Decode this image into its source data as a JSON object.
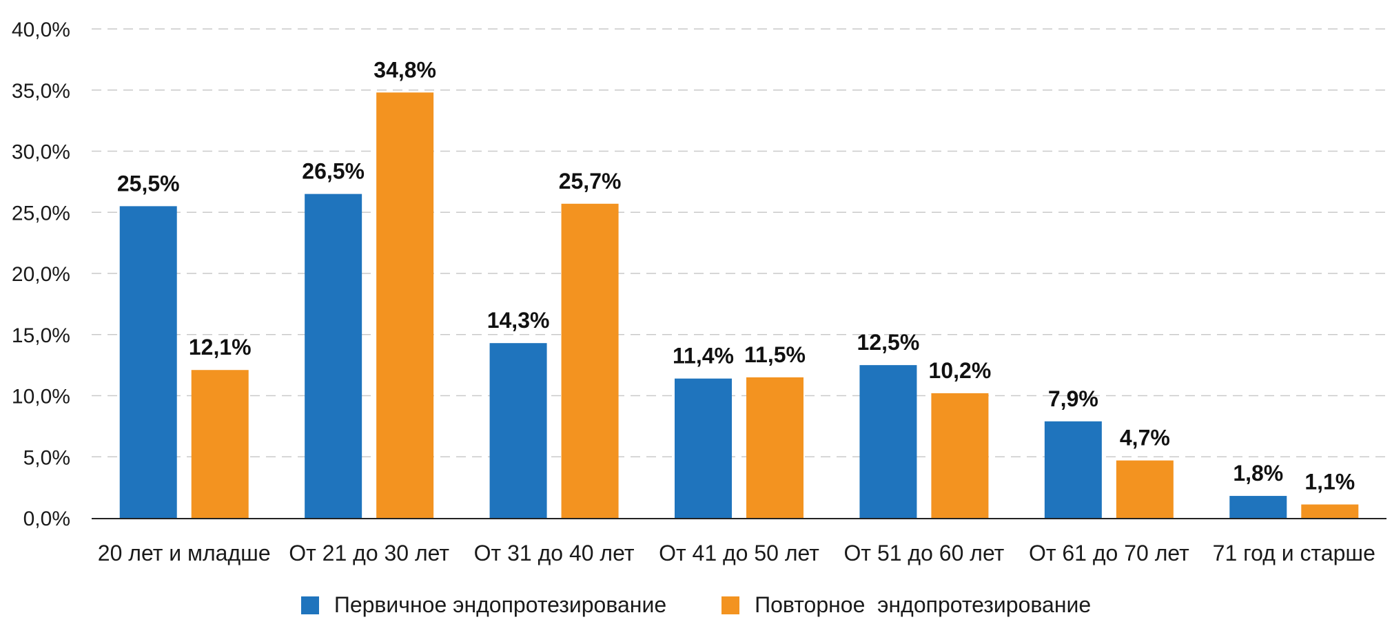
{
  "chart_data": {
    "type": "bar",
    "title": "",
    "xlabel": "",
    "ylabel": "",
    "ylim": [
      0,
      40
    ],
    "y_ticks": [
      "0,0%",
      "5,0%",
      "10,0%",
      "15,0%",
      "20,0%",
      "25,0%",
      "30,0%",
      "35,0%",
      "40,0%"
    ],
    "grid": true,
    "legend_position": "bottom",
    "categories": [
      "20 лет и младше",
      "От 21 до 30 лет",
      "От 31 до 40 лет",
      "От 41 до 50 лет",
      "От 51 до 60 лет",
      "От 61 до 70 лет",
      "71 год и старше"
    ],
    "series": [
      {
        "name": "Первичное эндопротезирование",
        "color": "#1f74bd",
        "values": [
          25.5,
          26.5,
          14.3,
          11.4,
          12.5,
          7.9,
          1.8
        ],
        "labels": [
          "25,5%",
          "26,5%",
          "14,3%",
          "11,4%",
          "12,5%",
          "7,9%",
          "1,8%"
        ]
      },
      {
        "name": "Повторное  эндопротезирование",
        "color": "#f39320",
        "values": [
          12.1,
          34.8,
          25.7,
          11.5,
          10.2,
          4.7,
          1.1
        ],
        "labels": [
          "12,1%",
          "34,8%",
          "25,7%",
          "11,5%",
          "10,2%",
          "4,7%",
          "1,1%"
        ]
      }
    ]
  }
}
